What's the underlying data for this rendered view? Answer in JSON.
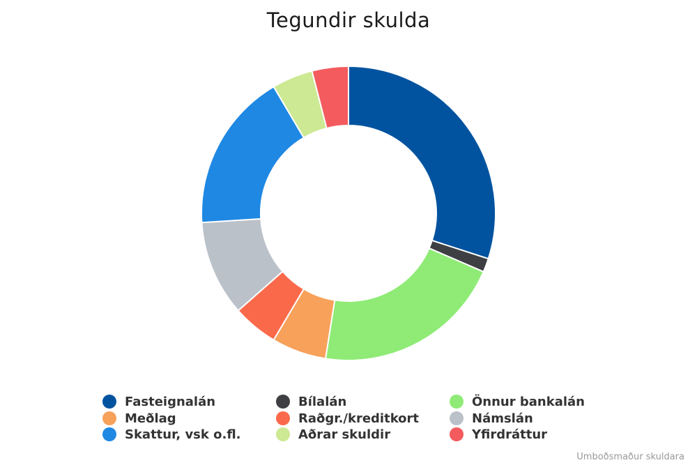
{
  "chart_data": {
    "type": "pie",
    "variant": "donut",
    "title": "Tegundir skulda",
    "credits": "Umboðsmaður skuldara",
    "legend_position": "bottom",
    "slices": [
      {
        "name": "Fasteignalán",
        "value": 30.0,
        "color": "#01539f"
      },
      {
        "name": "Bílalán",
        "value": 1.5,
        "color": "#3e3f43"
      },
      {
        "name": "Önnur bankalán",
        "value": 21.0,
        "color": "#8feb76"
      },
      {
        "name": "Meðlag",
        "value": 6.0,
        "color": "#f7a15a"
      },
      {
        "name": "Raðgr./kreditkort",
        "value": 5.0,
        "color": "#fb694b"
      },
      {
        "name": "Námslán",
        "value": 10.5,
        "color": "#bac1c9"
      },
      {
        "name": "Skattur, vsk o.fl.",
        "value": 17.5,
        "color": "#1f88e3"
      },
      {
        "name": "Aðrar skuldir",
        "value": 4.5,
        "color": "#cde993"
      },
      {
        "name": "Yfirdráttur",
        "value": 4.0,
        "color": "#f35b5e"
      }
    ]
  }
}
